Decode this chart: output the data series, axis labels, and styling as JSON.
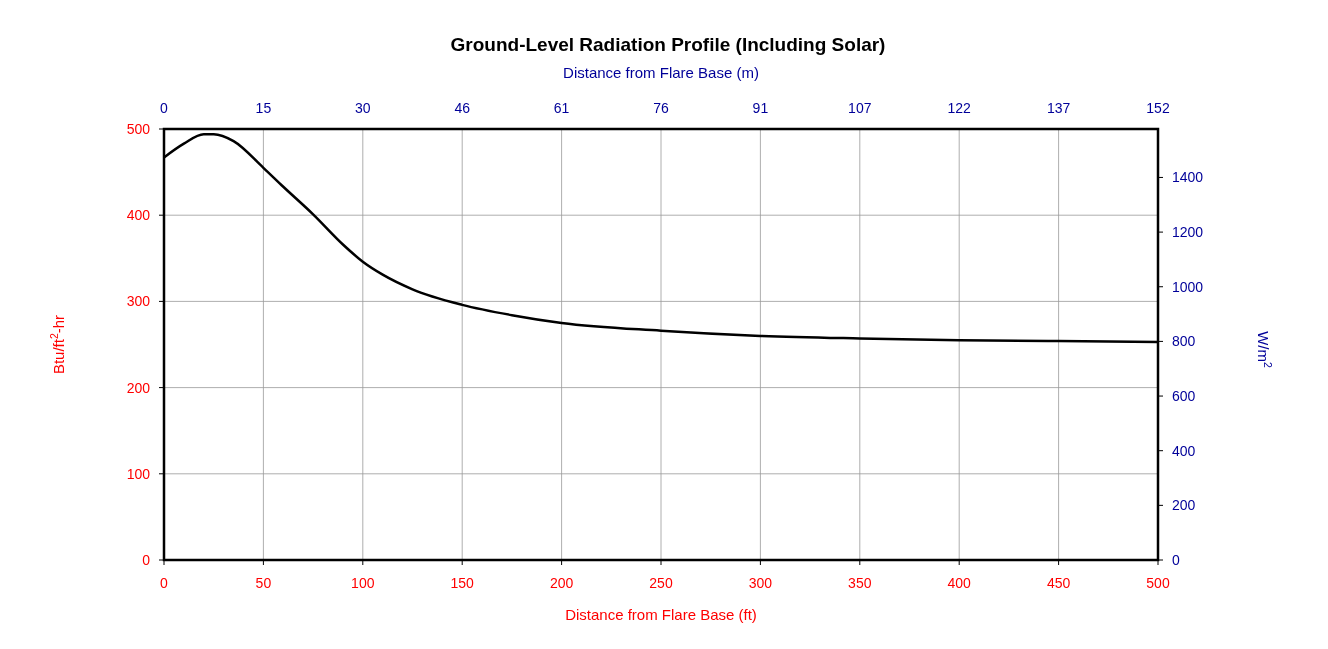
{
  "chart_data": {
    "type": "line",
    "title": "Ground-Level Radiation Profile (Including Solar)",
    "xlabel": "Distance from Flare Base (ft)",
    "x2label": "Distance from Flare Base (m)",
    "ylabel": "Btu/ft$^{2}$-hr",
    "y2label": "W/m$^{2}$",
    "x": [
      0,
      10,
      20,
      25,
      35,
      50,
      60,
      75,
      90,
      100,
      110,
      125,
      150,
      175,
      200,
      250,
      300,
      350,
      400,
      450,
      500
    ],
    "series": [
      {
        "color": "#000000",
        "values": [
          467,
          483,
          494,
          494,
          486,
          455,
          433,
          401,
          366,
          346,
          331,
          314,
          296,
          284,
          275,
          266,
          260,
          257,
          255,
          254,
          253
        ]
      }
    ],
    "xlim": [
      0,
      500
    ],
    "xticks": [
      0,
      50,
      100,
      150,
      200,
      250,
      300,
      350,
      400,
      450,
      500
    ],
    "x2lim": [
      0,
      152.4
    ],
    "x2ticks": [
      0,
      {
        "value": 15.24,
        "label": "15"
      },
      {
        "value": 30.48,
        "label": "30"
      },
      {
        "value": 45.72,
        "label": "46"
      },
      {
        "value": 60.96,
        "label": "61"
      },
      {
        "value": 76.2,
        "label": "76"
      },
      {
        "value": 91.44,
        "label": "91"
      },
      {
        "value": 106.68,
        "label": "107"
      },
      {
        "value": 121.92,
        "label": "122"
      },
      {
        "value": 137.16,
        "label": "137"
      },
      {
        "value": 152.4,
        "label": "152"
      }
    ],
    "ylim": [
      0,
      500
    ],
    "yticks": [
      0,
      100,
      200,
      300,
      400,
      500
    ],
    "y2lim": [
      0,
      1577.3
    ],
    "y2ticks": [
      0,
      200,
      400,
      600,
      800,
      1000,
      1200,
      1400
    ],
    "grid": true,
    "marker": "none",
    "line_style": "solid"
  }
}
